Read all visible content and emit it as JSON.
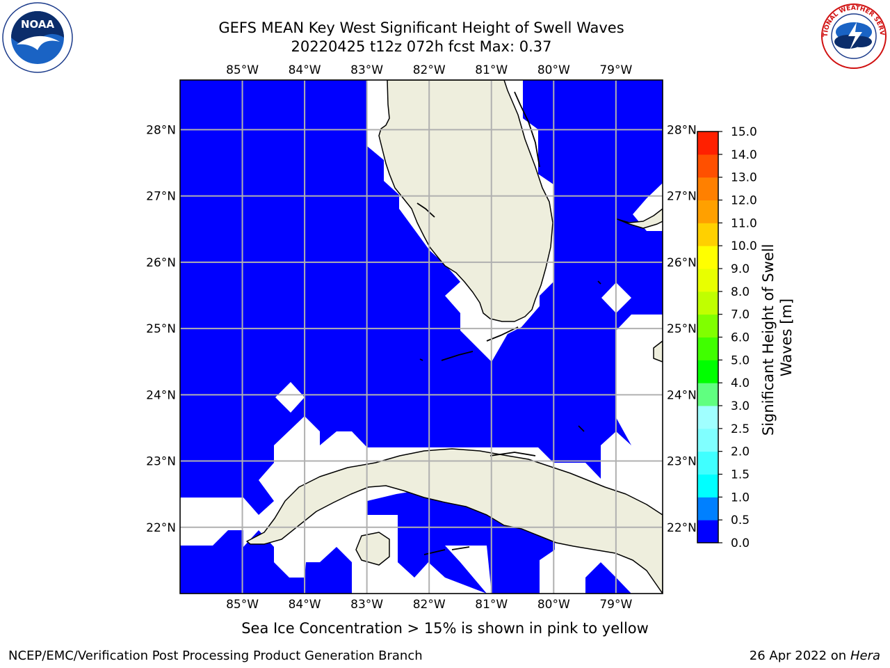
{
  "title": {
    "line1": "GEFS MEAN Key West Significant Height of Swell Waves",
    "line2": "20220425 t12z 072h fcst   Max: 0.37"
  },
  "logos": {
    "noaa_text": "NOAA",
    "noaa_ring_text": "NATIONAL OCEANIC AND ATMOSPHERIC ADMINISTRATION · U.S. DEPARTMENT OF COMMERCE",
    "nws_ring_text": "NATIONAL WEATHER SERVICE"
  },
  "map": {
    "lon_labels": [
      "85°W",
      "84°W",
      "83°W",
      "82°W",
      "81°W",
      "80°W",
      "79°W"
    ],
    "lon_values": [
      -85,
      -84,
      -83,
      -82,
      -81,
      -80,
      -79
    ],
    "lat_labels": [
      "28°N",
      "27°N",
      "26°N",
      "25°N",
      "24°N",
      "23°N",
      "22°N"
    ],
    "lat_values": [
      28,
      27,
      26,
      25,
      24,
      23,
      22
    ],
    "lon_range": [
      -86.0,
      -78.25
    ],
    "lat_range": [
      21.0,
      28.75
    ],
    "colors": {
      "water": "#0000ff",
      "land": "#eeeedd",
      "nodata": "#ffffff",
      "grid": "#b0b0b0",
      "coast": "#000000"
    }
  },
  "colorbar": {
    "label": "Significant Height of Swell Waves [m]",
    "ticks": [
      "0.0",
      "0.5",
      "1.0",
      "1.5",
      "2.0",
      "2.5",
      "3.0",
      "4.0",
      "5.0",
      "6.0",
      "7.0",
      "8.0",
      "9.0",
      "10.0",
      "11.0",
      "12.0",
      "13.0",
      "14.0",
      "15.0"
    ],
    "colors": [
      "#0000ff",
      "#0080ff",
      "#00ffff",
      "#40ffff",
      "#80ffff",
      "#a0ffff",
      "#60ff80",
      "#00ff00",
      "#40ff00",
      "#80ff00",
      "#c0ff00",
      "#e8ff00",
      "#ffff00",
      "#ffd000",
      "#ffa000",
      "#ff8000",
      "#ff5000",
      "#ff2000",
      "#ff0000"
    ]
  },
  "note": "Sea Ice Concentration > 15% is shown in pink to yellow",
  "footer": {
    "left": "NCEP/EMC/Verification Post Processing Product Generation Branch",
    "date": "26 Apr 2022 on",
    "host": "Hera"
  }
}
